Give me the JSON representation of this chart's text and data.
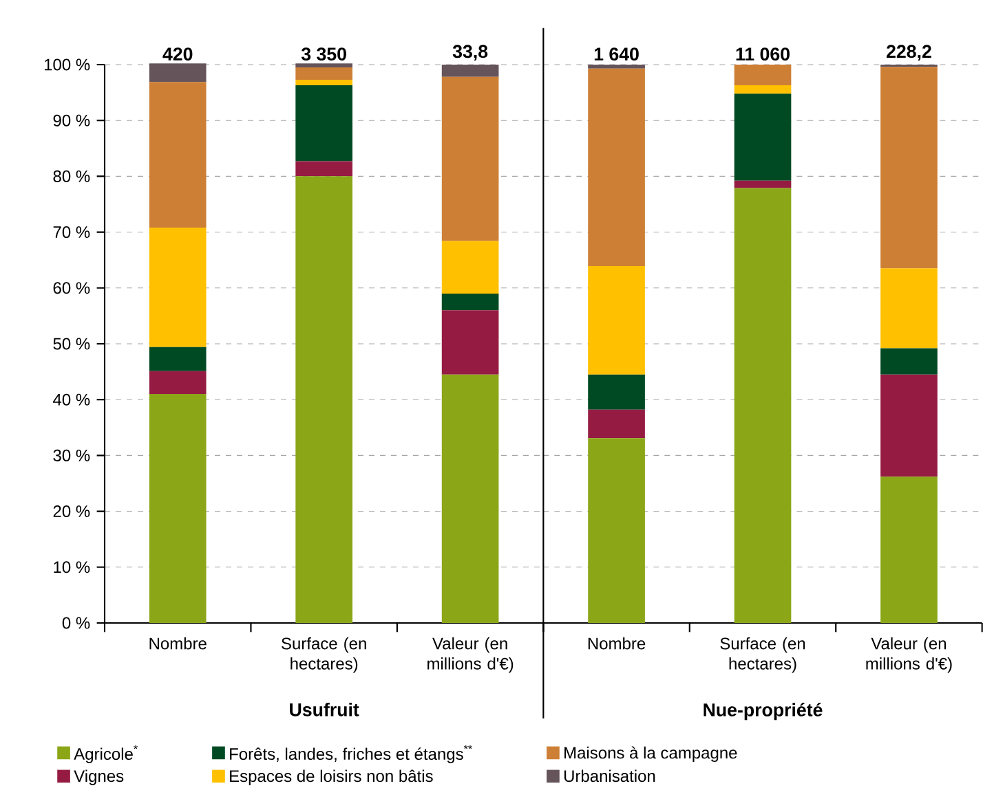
{
  "chart_data": [
    {
      "type": "bar",
      "stacked": true,
      "xlabel": "Usufruit",
      "categories": [
        "Nombre",
        "Surface (en hectares)",
        "Valeur (en millions d'€)"
      ],
      "series": [
        {
          "name": "Agricole$^{*}$",
          "color": "#8ba616",
          "values": [
            41,
            80,
            44.5
          ]
        },
        {
          "name": "Vignes",
          "color": "#951b43",
          "values": [
            4.1,
            2.7,
            11.5
          ]
        },
        {
          "name": "Forêts, landes, friches et étangs$^{**}$",
          "color": "#004a23",
          "values": [
            4.3,
            13.6,
            3.0
          ]
        },
        {
          "name": "Espaces de loisirs non bâtis",
          "color": "#ffc000",
          "values": [
            21.4,
            1.0,
            9.4
          ]
        },
        {
          "name": "Maisons à la campagne",
          "color": "#cd7f35",
          "values": [
            26.1,
            2.2,
            29.4
          ]
        },
        {
          "name": "Urbanisation",
          "color": "#65545a",
          "values": [
            3.3,
            0.7,
            2.2
          ]
        }
      ],
      "annotations": [
        "420",
        "3 350",
        "33,8"
      ],
      "ylim": [
        0,
        100
      ],
      "yticks": [
        {
          "value": 0,
          "label": "0 %"
        },
        {
          "value": 10,
          "label": "10 %"
        },
        {
          "value": 20,
          "label": "20 %"
        },
        {
          "value": 30,
          "label": "30 %"
        },
        {
          "value": 40,
          "label": "40 %"
        },
        {
          "value": 50,
          "label": "50 %"
        },
        {
          "value": 60,
          "label": "60 %"
        },
        {
          "value": 70,
          "label": "70 %"
        },
        {
          "value": 80,
          "label": "80 %"
        },
        {
          "value": 90,
          "label": "90 %"
        },
        {
          "value": 100,
          "label": "100 %"
        }
      ],
      "grid": "y",
      "legend": "bottom"
    },
    {
      "type": "bar",
      "stacked": true,
      "xlabel": "Nue-propriété",
      "categories": [
        "Nombre",
        "Surface (en hectares)",
        "Valeur (en millions d'€)"
      ],
      "series": [
        {
          "color": "#8ba616",
          "values": [
            33.1,
            77.9,
            26.2
          ]
        },
        {
          "color": "#951b43",
          "values": [
            5.1,
            1.3,
            18.3
          ]
        },
        {
          "color": "#004a23",
          "values": [
            6.3,
            15.6,
            4.7
          ]
        },
        {
          "color": "#ffc000",
          "values": [
            19.4,
            1.5,
            14.3
          ]
        },
        {
          "color": "#cd7f35",
          "values": [
            35.4,
            3.7,
            36.1
          ]
        },
        {
          "color": "#65545a",
          "values": [
            0.7,
            0,
            0.4
          ]
        }
      ],
      "annotations": [
        "1 640",
        "11 060",
        "228,2"
      ],
      "ylim": [
        0,
        100
      ],
      "yticks": [
        0,
        10,
        20,
        30,
        40,
        50,
        60,
        70,
        80,
        90,
        100
      ],
      "tick_labels": "x",
      "grid": "y"
    }
  ]
}
